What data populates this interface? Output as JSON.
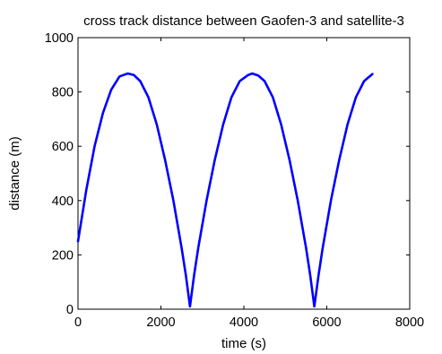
{
  "chart_data": {
    "type": "line",
    "title": "cross track distance between Gaofen-3 and satellite-3",
    "xlabel": "time (s)",
    "ylabel": "distance (m)",
    "xlim": [
      0,
      8000
    ],
    "ylim": [
      0,
      1000
    ],
    "x_ticks": [
      "0",
      "2000",
      "4000",
      "6000",
      "8000"
    ],
    "y_ticks": [
      "0",
      "200",
      "400",
      "600",
      "800",
      "1000"
    ],
    "grid": false,
    "series": [
      {
        "color": "#0000ff",
        "x": [
          0,
          200,
          400,
          600,
          800,
          1000,
          1200,
          1350,
          1500,
          1700,
          1900,
          2100,
          2300,
          2500,
          2600,
          2700,
          2800,
          2900,
          3100,
          3300,
          3500,
          3700,
          3900,
          4100,
          4200,
          4350,
          4500,
          4700,
          4900,
          5100,
          5300,
          5500,
          5600,
          5700,
          5800,
          5900,
          6100,
          6300,
          6500,
          6700,
          6900,
          7100
        ],
        "y": [
          250,
          440,
          600,
          722,
          808,
          857,
          868,
          862,
          840,
          780,
          680,
          550,
          400,
          225,
          125,
          10,
          125,
          225,
          400,
          550,
          680,
          780,
          840,
          862,
          868,
          860,
          840,
          780,
          680,
          550,
          400,
          225,
          125,
          10,
          125,
          225,
          400,
          550,
          680,
          780,
          840,
          866
        ]
      }
    ]
  }
}
